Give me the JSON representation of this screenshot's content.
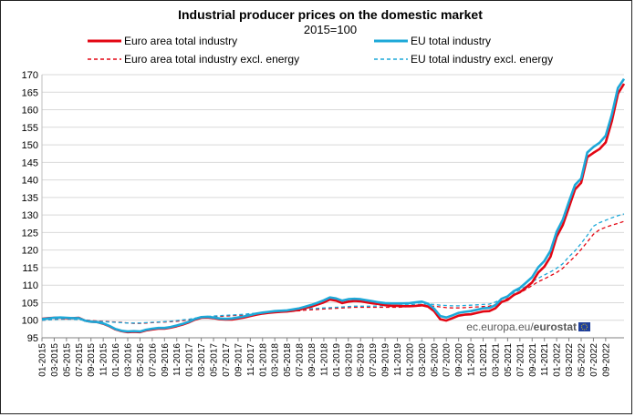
{
  "chart_data": {
    "type": "line",
    "title": "Industrial producer prices on the domestic market",
    "subtitle": "2015=100",
    "ylim": [
      95,
      170
    ],
    "yticks": [
      95,
      100,
      105,
      110,
      115,
      120,
      125,
      130,
      135,
      140,
      145,
      150,
      155,
      160,
      165,
      170
    ],
    "grid": true,
    "legend_position": "top",
    "x_tick_labels": [
      "01-2015",
      "03-2015",
      "05-2015",
      "07-2015",
      "09-2015",
      "11-2015",
      "01-2016",
      "03-2016",
      "05-2016",
      "07-2016",
      "09-2016",
      "11-2016",
      "01-2017",
      "03-2017",
      "05-2017",
      "07-2017",
      "09-2017",
      "11-2017",
      "01-2018",
      "03-2018",
      "05-2018",
      "07-2018",
      "09-2018",
      "11-2018",
      "01-2019",
      "03-2019",
      "05-2019",
      "07-2019",
      "09-2019",
      "11-2019",
      "01-2020",
      "03-2020",
      "05-2020",
      "07-2020",
      "09-2020",
      "11-2020",
      "01-2021",
      "03-2021",
      "05-2021",
      "07-2021",
      "09-2021",
      "11-2021",
      "01-2022",
      "03-2022",
      "05-2022",
      "07-2022",
      "09-2022"
    ],
    "series": [
      {
        "name": "Euro area total industry",
        "color": "#e30613",
        "dash": "solid",
        "values": [
          100.4,
          100.6,
          100.7,
          100.7,
          100.6,
          100.6,
          100.7,
          99.9,
          99.6,
          99.5,
          99.0,
          98.3,
          97.4,
          96.9,
          96.6,
          96.7,
          96.6,
          97.1,
          97.4,
          97.6,
          97.6,
          97.9,
          98.3,
          98.8,
          99.4,
          100.2,
          100.7,
          100.8,
          100.6,
          100.3,
          100.2,
          100.2,
          100.5,
          100.8,
          101.2,
          101.6,
          101.9,
          102.1,
          102.3,
          102.4,
          102.5,
          102.7,
          103.0,
          103.5,
          103.9,
          104.5,
          105.1,
          105.9,
          105.6,
          104.9,
          105.3,
          105.5,
          105.4,
          105.1,
          104.8,
          104.6,
          104.3,
          104.1,
          104.1,
          104.0,
          104.0,
          104.1,
          104.3,
          103.9,
          102.6,
          100.3,
          99.9,
          100.6,
          101.3,
          101.6,
          101.7,
          102.1,
          102.5,
          102.6,
          103.4,
          105.2,
          105.8,
          107.2,
          108.0,
          109.3,
          110.8,
          113.6,
          115.3,
          118.1,
          123.8,
          127.1,
          132.2,
          137.3,
          139.2,
          146.5,
          147.7,
          148.8,
          150.7,
          156.7,
          164.6,
          167.4
        ]
      },
      {
        "name": "EU total industry",
        "color": "#1da8d8",
        "dash": "solid",
        "values": [
          100.3,
          100.5,
          100.7,
          100.8,
          100.7,
          100.6,
          100.6,
          99.9,
          99.6,
          99.5,
          99.1,
          98.4,
          97.5,
          97.0,
          96.8,
          96.9,
          96.8,
          97.3,
          97.6,
          97.8,
          97.8,
          98.1,
          98.5,
          99.0,
          99.6,
          100.4,
          100.9,
          101.0,
          100.8,
          100.5,
          100.4,
          100.5,
          100.8,
          101.1,
          101.5,
          101.9,
          102.2,
          102.4,
          102.6,
          102.7,
          102.8,
          103.1,
          103.4,
          103.9,
          104.4,
          105.0,
          105.7,
          106.5,
          106.2,
          105.6,
          106.0,
          106.1,
          106.0,
          105.7,
          105.4,
          105.1,
          104.9,
          104.8,
          104.8,
          104.8,
          104.9,
          105.1,
          105.3,
          104.7,
          103.3,
          101.2,
          100.8,
          101.4,
          102.1,
          102.4,
          102.6,
          103.0,
          103.4,
          103.5,
          104.3,
          106.1,
          106.8,
          108.3,
          109.2,
          110.7,
          112.3,
          115.1,
          116.9,
          119.8,
          125.2,
          128.6,
          133.8,
          138.6,
          140.4,
          147.8,
          149.4,
          150.6,
          152.6,
          158.6,
          166.2,
          168.8
        ]
      },
      {
        "name": "Euro area total industry excl. energy",
        "color": "#e30613",
        "dash": "dashed",
        "values": [
          100.0,
          100.1,
          100.3,
          100.4,
          100.4,
          100.4,
          100.3,
          100.1,
          99.9,
          99.8,
          99.7,
          99.6,
          99.5,
          99.4,
          99.2,
          99.1,
          99.1,
          99.2,
          99.3,
          99.4,
          99.5,
          99.6,
          99.7,
          99.9,
          100.1,
          100.4,
          100.7,
          100.9,
          101.0,
          101.1,
          101.2,
          101.3,
          101.4,
          101.5,
          101.6,
          101.7,
          101.9,
          102.1,
          102.2,
          102.3,
          102.4,
          102.6,
          102.7,
          102.9,
          103.0,
          103.1,
          103.2,
          103.3,
          103.4,
          103.5,
          103.6,
          103.7,
          103.7,
          103.7,
          103.7,
          103.7,
          103.7,
          103.7,
          103.7,
          103.8,
          103.9,
          104.0,
          104.1,
          104.1,
          104.0,
          103.8,
          103.6,
          103.5,
          103.5,
          103.6,
          103.7,
          103.8,
          103.9,
          104.0,
          104.5,
          105.3,
          106.2,
          107.0,
          107.8,
          108.8,
          109.9,
          111.0,
          111.8,
          112.7,
          113.6,
          114.8,
          116.6,
          118.2,
          120.2,
          122.3,
          124.5,
          125.8,
          126.5,
          127.1,
          127.6,
          128.2
        ]
      },
      {
        "name": "EU total industry excl. energy",
        "color": "#1da8d8",
        "dash": "dashed",
        "values": [
          100.0,
          100.1,
          100.2,
          100.3,
          100.3,
          100.3,
          100.2,
          100.0,
          99.8,
          99.7,
          99.6,
          99.5,
          99.4,
          99.3,
          99.2,
          99.2,
          99.2,
          99.3,
          99.4,
          99.5,
          99.6,
          99.7,
          99.9,
          100.1,
          100.3,
          100.6,
          100.9,
          101.1,
          101.2,
          101.3,
          101.4,
          101.5,
          101.6,
          101.7,
          101.9,
          102.0,
          102.2,
          102.4,
          102.5,
          102.6,
          102.7,
          102.9,
          103.0,
          103.2,
          103.3,
          103.4,
          103.5,
          103.6,
          103.7,
          103.8,
          103.9,
          104.0,
          104.0,
          104.0,
          104.0,
          104.1,
          104.1,
          104.1,
          104.2,
          104.3,
          104.4,
          104.5,
          104.6,
          104.6,
          104.5,
          104.3,
          104.2,
          104.1,
          104.1,
          104.2,
          104.3,
          104.4,
          104.5,
          104.6,
          105.2,
          106.0,
          106.9,
          107.8,
          108.7,
          109.7,
          110.9,
          112.0,
          112.9,
          113.8,
          114.8,
          116.1,
          118.1,
          119.8,
          121.9,
          124.2,
          126.8,
          127.8,
          128.5,
          129.2,
          129.8,
          130.3
        ]
      }
    ],
    "source": {
      "prefix": "ec.europa.eu/",
      "bold": "eurostat"
    }
  }
}
